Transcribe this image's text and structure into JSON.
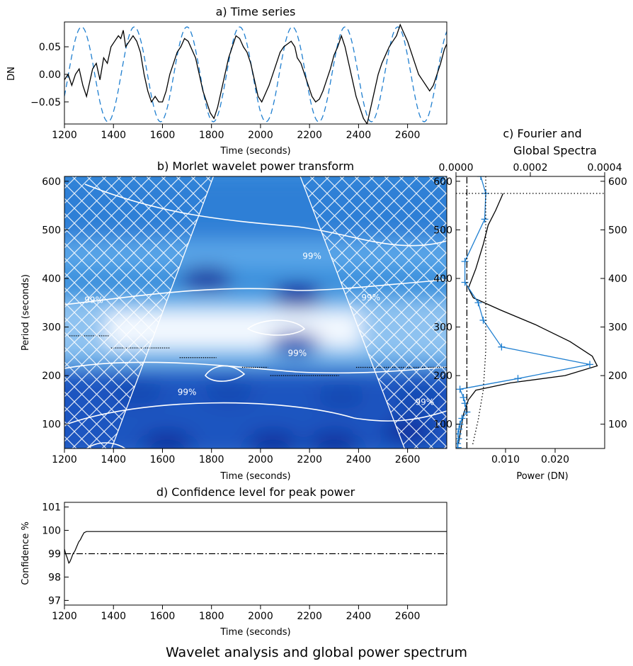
{
  "figure_caption": "Wavelet analysis and global power spectrum",
  "colors": {
    "signal": "#000000",
    "model": "#1f7fd0",
    "fourier": "#1f7fd0",
    "power_low": "#f2f8ff",
    "power_high": "#0a2a9a",
    "contour": "#ffffff"
  },
  "chart_data": [
    {
      "id": "a",
      "type": "line",
      "title": "a) Time series",
      "xlabel": "Time (seconds)",
      "ylabel": "DN",
      "xlim": [
        1200,
        2760
      ],
      "ylim": [
        -0.09,
        0.095
      ],
      "xticks": [
        1200,
        1400,
        1600,
        1800,
        2000,
        2200,
        2400,
        2600
      ],
      "yticks": [
        -0.05,
        0.0,
        0.05
      ],
      "ytick_labels": [
        "−0.05",
        "0.00",
        "0.05"
      ],
      "series": [
        {
          "style": "solid",
          "color": "#000000",
          "x": [
            1200,
            1215,
            1230,
            1245,
            1260,
            1275,
            1290,
            1300,
            1315,
            1330,
            1345,
            1360,
            1375,
            1390,
            1405,
            1420,
            1430,
            1440,
            1450,
            1465,
            1480,
            1495,
            1510,
            1525,
            1540,
            1555,
            1570,
            1585,
            1600,
            1615,
            1630,
            1645,
            1660,
            1675,
            1690,
            1705,
            1720,
            1735,
            1750,
            1765,
            1780,
            1795,
            1810,
            1825,
            1840,
            1855,
            1870,
            1885,
            1900,
            1915,
            1930,
            1945,
            1960,
            1975,
            1990,
            2005,
            2020,
            2035,
            2050,
            2065,
            2080,
            2095,
            2110,
            2125,
            2140,
            2150,
            2165,
            2180,
            2195,
            2210,
            2225,
            2240,
            2255,
            2270,
            2285,
            2300,
            2315,
            2330,
            2345,
            2360,
            2375,
            2390,
            2405,
            2420,
            2435,
            2450,
            2465,
            2480,
            2495,
            2510,
            2525,
            2540,
            2555,
            2570,
            2585,
            2600,
            2615,
            2630,
            2645,
            2660,
            2675,
            2690,
            2705,
            2720,
            2735,
            2750,
            2760
          ],
          "y": [
            -0.01,
            0.0,
            -0.02,
            0.0,
            0.01,
            -0.02,
            -0.04,
            -0.02,
            0.01,
            0.02,
            -0.01,
            0.03,
            0.02,
            0.05,
            0.06,
            0.07,
            0.065,
            0.08,
            0.05,
            0.06,
            0.07,
            0.06,
            0.04,
            0.0,
            -0.03,
            -0.05,
            -0.04,
            -0.05,
            -0.05,
            -0.03,
            0.0,
            0.02,
            0.04,
            0.05,
            0.065,
            0.06,
            0.045,
            0.03,
            0.0,
            -0.03,
            -0.05,
            -0.07,
            -0.08,
            -0.06,
            -0.03,
            0.0,
            0.03,
            0.05,
            0.07,
            0.065,
            0.05,
            0.04,
            0.02,
            -0.01,
            -0.04,
            -0.05,
            -0.035,
            -0.02,
            0.0,
            0.02,
            0.04,
            0.05,
            0.055,
            0.06,
            0.05,
            0.03,
            0.02,
            0.0,
            -0.02,
            -0.04,
            -0.05,
            -0.045,
            -0.03,
            -0.01,
            0.01,
            0.035,
            0.05,
            0.07,
            0.05,
            0.02,
            -0.01,
            -0.04,
            -0.06,
            -0.08,
            -0.09,
            -0.06,
            -0.03,
            0.0,
            0.02,
            0.035,
            0.05,
            0.06,
            0.07,
            0.09,
            0.075,
            0.06,
            0.04,
            0.02,
            0.0,
            -0.01,
            -0.02,
            -0.03,
            -0.02,
            0.0,
            0.02,
            0.045,
            0.055
          ]
        },
        {
          "style": "dashed",
          "color": "#1f7fd0",
          "model": {
            "amplitude": 0.086,
            "period": 215,
            "peak_at": 1270
          }
        }
      ]
    },
    {
      "id": "b",
      "type": "heatmap",
      "title": "b) Morlet wavelet power transform",
      "xlabel": "Time (seconds)",
      "ylabel": "Period (seconds)",
      "xlim": [
        1200,
        2760
      ],
      "ylim": [
        50,
        610
      ],
      "xticks": [
        1200,
        1400,
        1600,
        1800,
        2000,
        2200,
        2400,
        2600
      ],
      "yticks": [
        100,
        200,
        300,
        400,
        500,
        600
      ],
      "power_maxima": [
        {
          "t": 1780,
          "p": 400,
          "power": 1.0
        },
        {
          "t": 2150,
          "p": 365,
          "power": 1.0
        },
        {
          "t": 2140,
          "p": 265,
          "power": 0.7
        },
        {
          "t": 1500,
          "p": 165,
          "power": 0.8
        },
        {
          "t": 1870,
          "p": 165,
          "power": 0.85
        },
        {
          "t": 2330,
          "p": 155,
          "power": 0.85
        },
        {
          "t": 2640,
          "p": 150,
          "power": 0.9
        },
        {
          "t": 1620,
          "p": 60,
          "power": 1.0
        },
        {
          "t": 2050,
          "p": 60,
          "power": 1.0
        },
        {
          "t": 2300,
          "p": 60,
          "power": 1.0
        },
        {
          "t": 2600,
          "p": 85,
          "power": 1.0
        }
      ],
      "significance_label": "99%",
      "significance_labels": [
        {
          "t": 2210,
          "p": 440
        },
        {
          "t": 1320,
          "p": 350
        },
        {
          "t": 2450,
          "p": 355
        },
        {
          "t": 2150,
          "p": 240
        },
        {
          "t": 1700,
          "p": 160
        },
        {
          "t": 2670,
          "p": 140
        }
      ],
      "ridge_segments": [
        {
          "t0": 1220,
          "t1": 1380,
          "p": 282
        },
        {
          "t0": 1390,
          "t1": 1630,
          "p": 257
        },
        {
          "t0": 1670,
          "t1": 1820,
          "p": 237
        },
        {
          "t0": 1925,
          "t1": 2030,
          "p": 217
        },
        {
          "t0": 2040,
          "t1": 2320,
          "p": 200
        },
        {
          "t0": 2390,
          "t1": 2760,
          "p": 217
        }
      ],
      "cone_of_influence": {
        "apex_left": {
          "t": 1810,
          "p": 610
        },
        "apex_right": {
          "t": 2160,
          "p": 610
        },
        "base_left_t": 1390,
        "base_right_t": 2590
      }
    },
    {
      "id": "c",
      "type": "line",
      "title_lines": [
        "c) Fourier and",
        "Global Spectra"
      ],
      "xlabel": "Power (DN)",
      "top_axis": {
        "xlim": [
          0.0,
          0.0004
        ],
        "ticks": [
          0.0,
          0.0002,
          0.0004
        ],
        "tick_labels": [
          "0.0000",
          "0.0002",
          "0.0004"
        ]
      },
      "bottom_axis": {
        "xlim": [
          0.0,
          0.03
        ],
        "ticks": [
          0.01,
          0.02
        ],
        "tick_labels": [
          "0.010",
          "0.020"
        ]
      },
      "ylim": [
        50,
        610
      ],
      "yticks": [
        100,
        200,
        300,
        400,
        500,
        600
      ],
      "series": [
        {
          "style": "solid",
          "color": "#000000",
          "axis": "bottom",
          "x": [
            0.0095,
            0.008,
            0.0065,
            0.0055,
            0.004,
            0.0025,
            0.0035,
            0.009,
            0.016,
            0.023,
            0.0275,
            0.0285,
            0.022,
            0.011,
            0.004,
            0.0025,
            0.0015,
            0.001,
            0.0005
          ],
          "y": [
            575,
            540,
            510,
            470,
            420,
            380,
            360,
            335,
            305,
            270,
            240,
            220,
            200,
            185,
            170,
            150,
            120,
            90,
            60
          ]
        },
        {
          "style": "solid-markers",
          "color": "#1f7fd0",
          "axis": "bottom",
          "x": [
            0.005,
            0.006,
            0.0058,
            0.0018,
            0.0018,
            0.0045,
            0.0055,
            0.0092,
            0.027,
            0.0125,
            0.0008,
            0.0015,
            0.0018,
            0.0022,
            0.0012,
            0.0008,
            0.0006,
            0.0004,
            0.0005,
            0.0003,
            0.0004
          ],
          "y": [
            610,
            575,
            522,
            435,
            392,
            350,
            314,
            259,
            223,
            194,
            172,
            155,
            143,
            125,
            112,
            100,
            90,
            80,
            70,
            60,
            52
          ]
        },
        {
          "style": "dotted",
          "color": "#000000",
          "axis": "bottom",
          "x": [
            0.006,
            0.006,
            0.006,
            0.006,
            0.0055,
            0.0045,
            0.0033
          ],
          "y": [
            610,
            420,
            300,
            250,
            170,
            110,
            55
          ]
        },
        {
          "style": "dashdot",
          "color": "#000000",
          "axis": "bottom",
          "x": [
            0.0022,
            0.0022
          ],
          "y": [
            50,
            610
          ]
        }
      ],
      "horizontal_dotted_at_period": 575
    },
    {
      "id": "d",
      "type": "line",
      "title": "d) Confidence level for peak power",
      "xlabel": "Time (seconds)",
      "ylabel": "Confidence %",
      "xlim": [
        1200,
        2760
      ],
      "ylim": [
        96.8,
        101.2
      ],
      "xticks": [
        1200,
        1400,
        1600,
        1800,
        2000,
        2200,
        2400,
        2600
      ],
      "yticks": [
        97,
        98,
        99,
        100,
        101
      ],
      "series": [
        {
          "style": "solid",
          "color": "#000000",
          "x": [
            1200,
            1205,
            1212,
            1218,
            1222,
            1228,
            1235,
            1242,
            1250,
            1258,
            1265,
            1272,
            1280,
            1290,
            2760
          ],
          "y": [
            99.2,
            99.0,
            98.8,
            98.6,
            98.65,
            98.8,
            99.0,
            99.1,
            99.3,
            99.5,
            99.6,
            99.75,
            99.9,
            99.95,
            99.95
          ]
        },
        {
          "style": "dashdot",
          "color": "#000000",
          "x": [
            1200,
            2760
          ],
          "y": [
            99.0,
            99.0
          ]
        }
      ]
    }
  ]
}
